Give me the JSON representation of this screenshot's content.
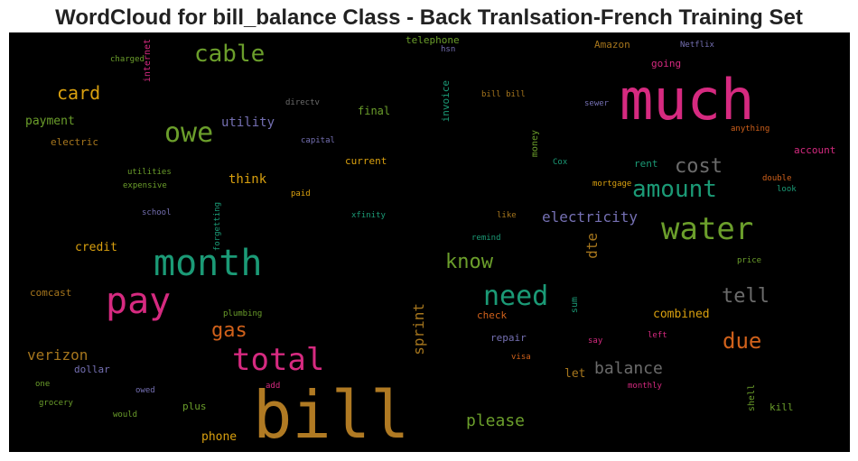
{
  "title": "WordCloud for bill_balance Class - Back Tranlsation-French Training Set",
  "words": [
    {
      "text": "bill",
      "color": "#b07a23"
    },
    {
      "text": "much",
      "color": "#d62a80"
    },
    {
      "text": "month",
      "color": "#1b9a76"
    },
    {
      "text": "pay",
      "color": "#d62a80"
    },
    {
      "text": "water",
      "color": "#6b9e2b"
    },
    {
      "text": "total",
      "color": "#d62a80"
    },
    {
      "text": "owe",
      "color": "#6b9e2b"
    },
    {
      "text": "need",
      "color": "#1b9a76"
    },
    {
      "text": "cable",
      "color": "#6b9e2b"
    },
    {
      "text": "amount",
      "color": "#1b9a76"
    },
    {
      "text": "cost",
      "color": "#6b6b6b"
    },
    {
      "text": "due",
      "color": "#d0611b"
    },
    {
      "text": "tell",
      "color": "#6b6b6b"
    },
    {
      "text": "gas",
      "color": "#d0611b"
    },
    {
      "text": "know",
      "color": "#6b9e2b"
    },
    {
      "text": "card",
      "color": "#d9a00f"
    },
    {
      "text": "balance",
      "color": "#6b6b6b"
    },
    {
      "text": "please",
      "color": "#6b9e2b"
    },
    {
      "text": "electricity",
      "color": "#7570b3"
    },
    {
      "text": "verizon",
      "color": "#a6761d"
    },
    {
      "text": "sprint",
      "color": "#a6761d"
    },
    {
      "text": "dte",
      "color": "#a6761d"
    },
    {
      "text": "utility",
      "color": "#7570b3"
    },
    {
      "text": "credit",
      "color": "#d9a00f"
    },
    {
      "text": "think",
      "color": "#d9a00f"
    },
    {
      "text": "payment",
      "color": "#6b9e2b"
    },
    {
      "text": "phone",
      "color": "#d9a00f"
    },
    {
      "text": "combined",
      "color": "#d9a00f"
    },
    {
      "text": "let",
      "color": "#a6761d"
    },
    {
      "text": "final",
      "color": "#6b9e2b"
    },
    {
      "text": "invoice",
      "color": "#1b9a76"
    },
    {
      "text": "electric",
      "color": "#a6761d"
    },
    {
      "text": "comcast",
      "color": "#a6761d"
    },
    {
      "text": "plus",
      "color": "#6b9e2b"
    },
    {
      "text": "dollar",
      "color": "#7570b3"
    },
    {
      "text": "current",
      "color": "#d9a00f"
    },
    {
      "text": "repair",
      "color": "#7570b3"
    },
    {
      "text": "check",
      "color": "#d0611b"
    },
    {
      "text": "telephone",
      "color": "#6b9e2b"
    },
    {
      "text": "Amazon",
      "color": "#a6761d"
    },
    {
      "text": "account",
      "color": "#d62a80"
    },
    {
      "text": "rent",
      "color": "#1b9a76"
    },
    {
      "text": "going",
      "color": "#d62a80"
    },
    {
      "text": "money",
      "color": "#6b9e2b"
    },
    {
      "text": "internet",
      "color": "#d62a80"
    },
    {
      "text": "sum",
      "color": "#1b9a76"
    },
    {
      "text": "shell",
      "color": "#6b9e2b"
    },
    {
      "text": "kill",
      "color": "#6b9e2b"
    },
    {
      "text": "grocery",
      "color": "#6b9e2b"
    },
    {
      "text": "would",
      "color": "#6b9e2b"
    },
    {
      "text": "owed",
      "color": "#7570b3"
    },
    {
      "text": "add",
      "color": "#d62a80"
    },
    {
      "text": "Netflix",
      "color": "#7570b3"
    },
    {
      "text": "hsn",
      "color": "#7570b3"
    },
    {
      "text": "charged",
      "color": "#6b9e2b"
    },
    {
      "text": "directv",
      "color": "#6b6b6b"
    },
    {
      "text": "capital",
      "color": "#7570b3"
    },
    {
      "text": "utilities",
      "color": "#6b9e2b"
    },
    {
      "text": "expensive",
      "color": "#6b9e2b"
    },
    {
      "text": "school",
      "color": "#7570b3"
    },
    {
      "text": "forgetting",
      "color": "#1b9a76"
    },
    {
      "text": "paid",
      "color": "#d9a00f"
    },
    {
      "text": "xfinity",
      "color": "#1b9a76"
    },
    {
      "text": "plumbing",
      "color": "#6b9e2b"
    },
    {
      "text": "bill bill",
      "color": "#a6761d"
    },
    {
      "text": "sewer",
      "color": "#7570b3"
    },
    {
      "text": "anything",
      "color": "#d0611b"
    },
    {
      "text": "Cox",
      "color": "#1b9a76"
    },
    {
      "text": "mortgage",
      "color": "#d9a00f"
    },
    {
      "text": "double",
      "color": "#d0611b"
    },
    {
      "text": "look",
      "color": "#1b9a76"
    },
    {
      "text": "like",
      "color": "#a6761d"
    },
    {
      "text": "remind",
      "color": "#1b9a76"
    },
    {
      "text": "price",
      "color": "#6b9e2b"
    },
    {
      "text": "say",
      "color": "#d62a80"
    },
    {
      "text": "left",
      "color": "#d62a80"
    },
    {
      "text": "visa",
      "color": "#d0611b"
    },
    {
      "text": "monthly",
      "color": "#d62a80"
    },
    {
      "text": "one",
      "color": "#6b9e2b"
    }
  ]
}
